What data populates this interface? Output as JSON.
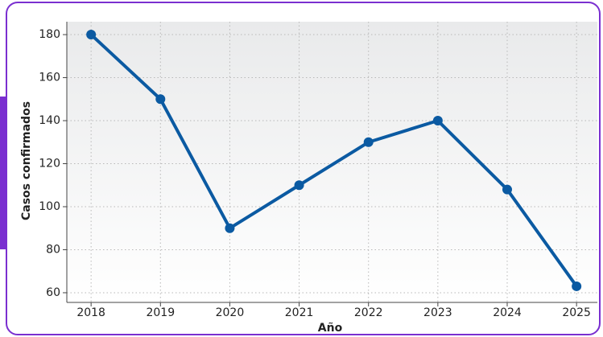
{
  "chart_data": {
    "type": "line",
    "x": [
      2018,
      2019,
      2020,
      2021,
      2022,
      2023,
      2024,
      2025
    ],
    "xlim": [
      2017.65,
      2025.3
    ],
    "xticks": [
      2018,
      2019,
      2020,
      2021,
      2022,
      2023,
      2024,
      2025
    ],
    "ylim": [
      55.5,
      186
    ],
    "yticks": [
      60,
      80,
      100,
      120,
      140,
      160,
      180
    ],
    "x_label": "Año",
    "y_label": "Casos confirmados",
    "grid": true,
    "series": [
      {
        "color": "#0b5aa2",
        "values": [
          180,
          150,
          90,
          110,
          130,
          140,
          108,
          63
        ]
      }
    ]
  }
}
